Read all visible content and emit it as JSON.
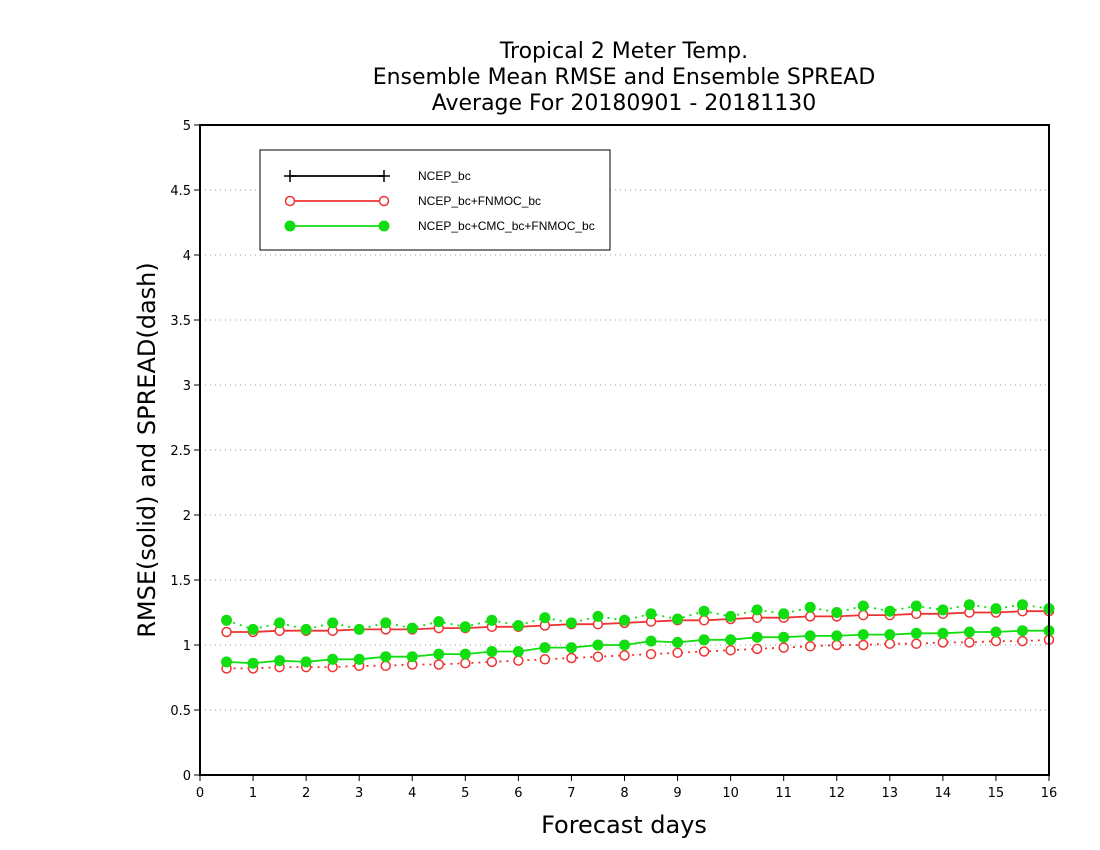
{
  "chart_data": {
    "type": "line",
    "title_lines": [
      "Tropical 2 Meter Temp.",
      "Ensemble Mean RMSE and Ensemble SPREAD",
      "Average For 20180901 - 20181130"
    ],
    "xlabel": "Forecast days",
    "ylabel": "RMSE(solid) and SPREAD(dash)",
    "xlim": [
      0,
      16
    ],
    "ylim": [
      0,
      5
    ],
    "xticks": [
      "0",
      "1",
      "2",
      "3",
      "4",
      "5",
      "6",
      "7",
      "8",
      "9",
      "10",
      "11",
      "12",
      "13",
      "14",
      "15",
      "16"
    ],
    "yticks": [
      "0",
      "0.5",
      "1",
      "1.5",
      "2",
      "2.5",
      "3",
      "3.5",
      "4",
      "4.5",
      "5"
    ],
    "grid": "horizontal dotted",
    "legend_position": "top-left",
    "x": [
      0.5,
      1,
      1.5,
      2,
      2.5,
      3,
      3.5,
      4,
      4.5,
      5,
      5.5,
      6,
      6.5,
      7,
      7.5,
      8,
      8.5,
      9,
      9.5,
      10,
      10.5,
      11,
      11.5,
      12,
      12.5,
      13,
      13.5,
      14,
      14.5,
      15,
      15.5,
      16
    ],
    "series": [
      {
        "name": "NCEP_bc",
        "color": "#000000",
        "marker": "plus",
        "rmse": [],
        "spread": []
      },
      {
        "name": "NCEP_bc+FNMOC_bc",
        "color": "#ee3333",
        "marker": "open-circle",
        "rmse": [
          1.1,
          1.1,
          1.11,
          1.11,
          1.11,
          1.12,
          1.12,
          1.12,
          1.13,
          1.13,
          1.14,
          1.14,
          1.15,
          1.16,
          1.16,
          1.17,
          1.18,
          1.19,
          1.19,
          1.2,
          1.21,
          1.21,
          1.22,
          1.22,
          1.23,
          1.23,
          1.24,
          1.24,
          1.25,
          1.25,
          1.26,
          1.26
        ],
        "spread": [
          0.82,
          0.82,
          0.83,
          0.83,
          0.83,
          0.84,
          0.84,
          0.85,
          0.85,
          0.86,
          0.87,
          0.88,
          0.89,
          0.9,
          0.91,
          0.92,
          0.93,
          0.94,
          0.95,
          0.96,
          0.97,
          0.98,
          0.99,
          1.0,
          1.0,
          1.01,
          1.01,
          1.02,
          1.02,
          1.03,
          1.03,
          1.04
        ]
      },
      {
        "name": "NCEP_bc+CMC_bc+FNMOC_bc",
        "color": "#11dd11",
        "marker": "filled-circle",
        "rmse": [
          0.87,
          0.86,
          0.88,
          0.87,
          0.89,
          0.89,
          0.91,
          0.91,
          0.93,
          0.93,
          0.95,
          0.95,
          0.98,
          0.98,
          1.0,
          1.0,
          1.03,
          1.02,
          1.04,
          1.04,
          1.06,
          1.06,
          1.07,
          1.07,
          1.08,
          1.08,
          1.09,
          1.09,
          1.1,
          1.1,
          1.11,
          1.11
        ],
        "spread": [
          1.19,
          1.12,
          1.17,
          1.12,
          1.17,
          1.12,
          1.17,
          1.13,
          1.18,
          1.14,
          1.19,
          1.15,
          1.21,
          1.17,
          1.22,
          1.19,
          1.24,
          1.2,
          1.26,
          1.22,
          1.27,
          1.24,
          1.29,
          1.25,
          1.3,
          1.26,
          1.3,
          1.27,
          1.31,
          1.28,
          1.31,
          1.28
        ]
      }
    ]
  }
}
